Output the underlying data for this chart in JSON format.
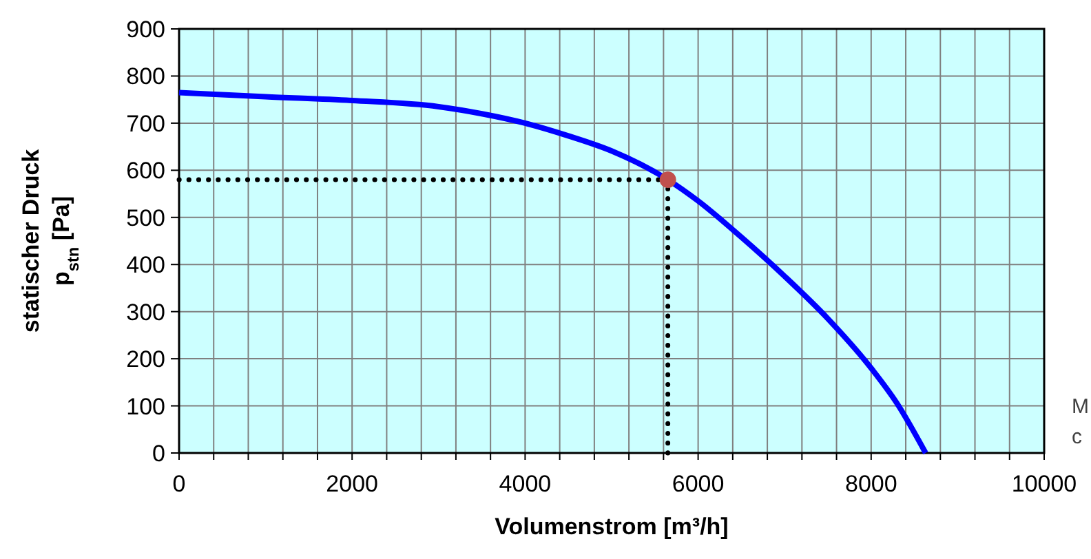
{
  "chart_data": {
    "type": "line",
    "xlabel": "Volumenstrom [m³/h]",
    "ylabel": "statischer Druck\np$_{stn}$ [Pa]",
    "xlim": [
      0,
      10000
    ],
    "ylim": [
      0,
      900
    ],
    "xticks": [
      0,
      {
        "value": 400,
        "label": null
      },
      {
        "value": 800,
        "label": null
      },
      {
        "value": 1200,
        "label": null
      },
      {
        "value": 1600,
        "label": null
      },
      2000,
      {
        "value": 2400,
        "label": null
      },
      {
        "value": 2800,
        "label": null
      },
      {
        "value": 3200,
        "label": null
      },
      {
        "value": 3600,
        "label": null
      },
      4000,
      {
        "value": 4400,
        "label": null
      },
      {
        "value": 4800,
        "label": null
      },
      {
        "value": 5200,
        "label": null
      },
      {
        "value": 5600,
        "label": null
      },
      6000,
      {
        "value": 6400,
        "label": null
      },
      {
        "value": 6800,
        "label": null
      },
      {
        "value": 7200,
        "label": null
      },
      {
        "value": 7600,
        "label": null
      },
      8000,
      {
        "value": 8400,
        "label": null
      },
      {
        "value": 8800,
        "label": null
      },
      {
        "value": 9200,
        "label": null
      },
      {
        "value": 9600,
        "label": null
      },
      10000
    ],
    "yticks": [
      0,
      100,
      200,
      300,
      400,
      500,
      600,
      700,
      800,
      900
    ],
    "grid": true,
    "marker": "none",
    "line_style": "solid",
    "series": [
      {
        "color": "#0000ff",
        "x": [
          0,
          1000,
          2000,
          3000,
          3500,
          4000,
          4500,
          5000,
          5650,
          6000,
          6500,
          7000,
          7500,
          8000,
          8300,
          8630
        ],
        "values": [
          765,
          756,
          748,
          735,
          720,
          700,
          673,
          641,
          580,
          535,
          458,
          375,
          285,
          180,
          105,
          0
        ]
      },
      {
        "type": "scatter",
        "color": "#c0504d",
        "marker": "circle",
        "x": [
          5650
        ],
        "values": [
          580
        ]
      }
    ],
    "ref_lines": [
      {
        "axis": "x",
        "value": 5650,
        "line_style": "dotted",
        "color": "#000000"
      },
      {
        "axis": "y",
        "value": 580,
        "line_style": "dotted",
        "color": "#000000"
      }
    ],
    "annotations": [
      "M",
      "c"
    ]
  }
}
